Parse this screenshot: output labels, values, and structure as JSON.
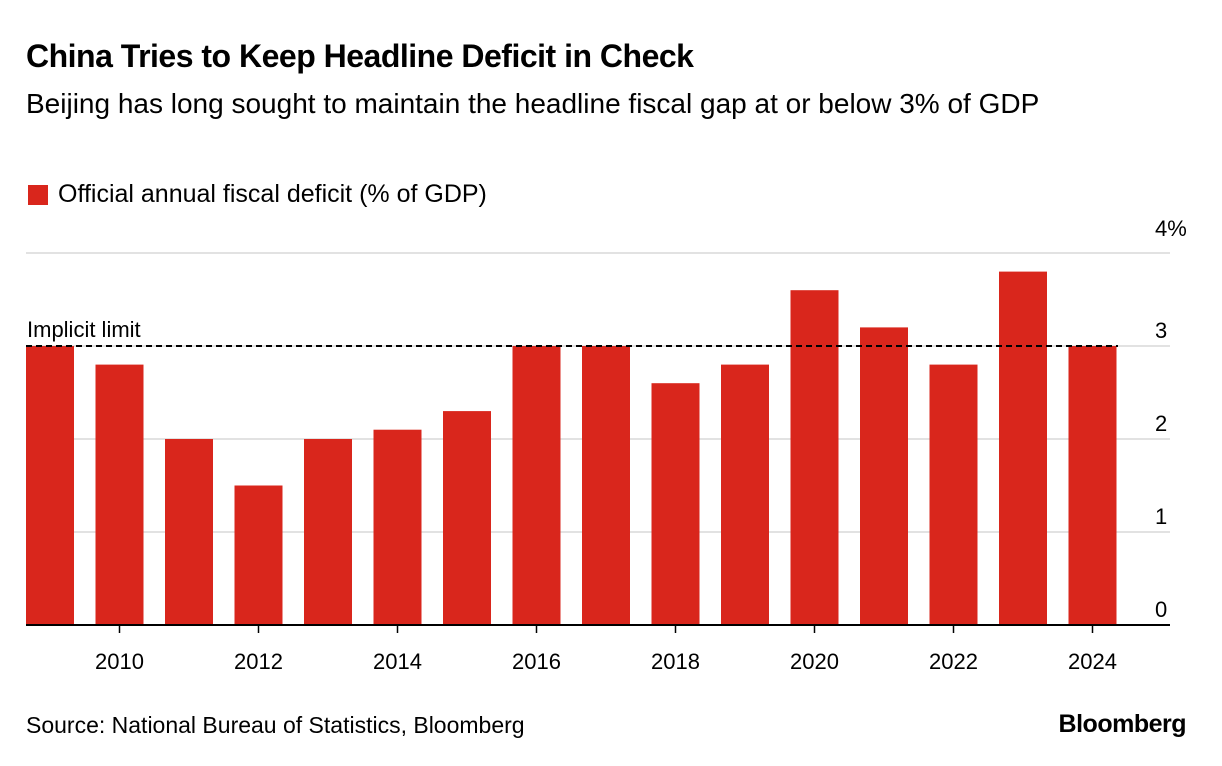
{
  "title": "China Tries to Keep Headline Deficit in Check",
  "subtitle": "Beijing has long sought to maintain the headline fiscal gap at or below 3% of GDP",
  "source": "Source: National Bureau of Statistics, Bloomberg",
  "brand": "Bloomberg",
  "colors": {
    "bar": "#d9261c",
    "grid": "#d9d9d9",
    "axis": "#000000"
  },
  "chart_data": {
    "type": "bar",
    "title": "China Tries to Keep Headline Deficit in Check",
    "legend": [
      "Official annual fiscal deficit (% of GDP)"
    ],
    "legend_placement": "top-left",
    "series": [
      {
        "name": "Official annual fiscal deficit (% of GDP)",
        "x": [
          2009,
          2010,
          2011,
          2012,
          2013,
          2014,
          2015,
          2016,
          2017,
          2018,
          2019,
          2020,
          2021,
          2022,
          2023,
          2024
        ],
        "values": [
          3.0,
          2.8,
          2.0,
          1.5,
          2.0,
          2.1,
          2.3,
          3.0,
          3.0,
          2.6,
          2.8,
          3.6,
          3.2,
          2.8,
          3.8,
          3.0
        ]
      }
    ],
    "xticks": [
      "2010",
      "2012",
      "2014",
      "2016",
      "2018",
      "2020",
      "2022",
      "2024"
    ],
    "yticks": [
      "0",
      "1",
      "2",
      "3",
      "4%"
    ],
    "ylim": [
      0,
      4
    ],
    "grid": true,
    "annotation": {
      "label": "Implicit limit",
      "value": 3
    },
    "xlabel": "",
    "ylabel": ""
  }
}
